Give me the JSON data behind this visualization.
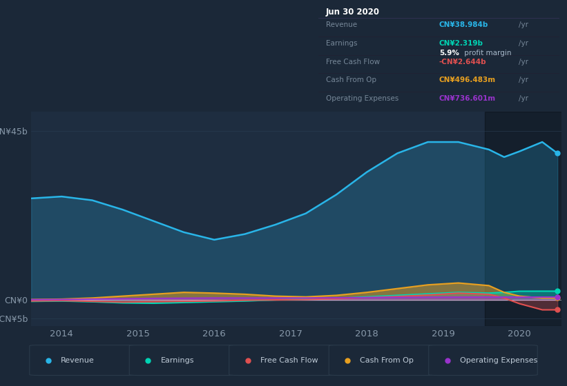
{
  "background_color": "#1b2838",
  "plot_bg_color": "#1e2d40",
  "text_color": "#8899aa",
  "title_color": "#ffffff",
  "x_years": [
    2013.6,
    2014.0,
    2014.4,
    2014.8,
    2015.2,
    2015.6,
    2016.0,
    2016.4,
    2016.8,
    2017.2,
    2017.6,
    2018.0,
    2018.4,
    2018.8,
    2019.2,
    2019.6,
    2019.8,
    2020.0,
    2020.3,
    2020.5
  ],
  "revenue": [
    27,
    27.5,
    26.5,
    24,
    21,
    18,
    16,
    17.5,
    20,
    23,
    28,
    34,
    39,
    42,
    42,
    40,
    38,
    39.5,
    42,
    38.984
  ],
  "earnings": [
    -0.4,
    -0.3,
    -0.5,
    -0.8,
    -0.9,
    -0.7,
    -0.5,
    -0.3,
    0.0,
    0.2,
    0.4,
    0.8,
    1.2,
    1.6,
    2.0,
    1.8,
    2.0,
    2.3,
    2.319,
    2.319
  ],
  "free_cash_flow": [
    -0.3,
    -0.2,
    -0.4,
    -0.6,
    -0.5,
    -0.4,
    -0.3,
    -0.1,
    0.0,
    0.1,
    0.3,
    0.6,
    0.9,
    1.3,
    1.8,
    1.5,
    0.5,
    -1.0,
    -2.644,
    -2.644
  ],
  "cash_from_op": [
    0.1,
    0.2,
    0.5,
    1.0,
    1.5,
    2.0,
    1.8,
    1.5,
    1.0,
    0.8,
    1.2,
    2.0,
    3.0,
    4.0,
    4.5,
    3.8,
    2.0,
    1.0,
    0.5,
    0.4966
  ],
  "operating_expenses": [
    0.05,
    0.1,
    0.2,
    0.3,
    0.4,
    0.45,
    0.5,
    0.5,
    0.5,
    0.5,
    0.55,
    0.6,
    0.65,
    0.7,
    0.72,
    0.73,
    0.73,
    0.73,
    0.7366,
    0.7366
  ],
  "revenue_color": "#29b5e8",
  "earnings_color": "#00d4b4",
  "free_cash_flow_color": "#e05050",
  "cash_from_op_color": "#e8a020",
  "operating_expenses_color": "#9933cc",
  "ylim_min": -7,
  "ylim_max": 50,
  "ytick_positions": [
    -5,
    0,
    45
  ],
  "ytick_labels": [
    "-CN¥5b",
    "CN¥0",
    "CN¥45b"
  ],
  "xtick_positions": [
    2014,
    2015,
    2016,
    2017,
    2018,
    2019,
    2020
  ],
  "info_box": {
    "date": "Jun 30 2020",
    "rows": [
      {
        "label": "Revenue",
        "value": "CN¥38.984b",
        "color": "#29b5e8",
        "suffix": " /yr",
        "extra": null
      },
      {
        "label": "Earnings",
        "value": "CN¥2.319b",
        "color": "#00d4b4",
        "suffix": " /yr",
        "extra": "5.9% profit margin"
      },
      {
        "label": "Free Cash Flow",
        "value": "-CN¥2.644b",
        "color": "#e05050",
        "suffix": " /yr",
        "extra": null
      },
      {
        "label": "Cash From Op",
        "value": "CN¥496.483m",
        "color": "#e8a020",
        "suffix": " /yr",
        "extra": null
      },
      {
        "label": "Operating Expenses",
        "value": "CN¥736.601m",
        "color": "#9933cc",
        "suffix": " /yr",
        "extra": null
      }
    ]
  },
  "legend_items": [
    {
      "label": "Revenue",
      "color": "#29b5e8"
    },
    {
      "label": "Earnings",
      "color": "#00d4b4"
    },
    {
      "label": "Free Cash Flow",
      "color": "#e05050"
    },
    {
      "label": "Cash From Op",
      "color": "#e8a020"
    },
    {
      "label": "Operating Expenses",
      "color": "#9933cc"
    }
  ]
}
